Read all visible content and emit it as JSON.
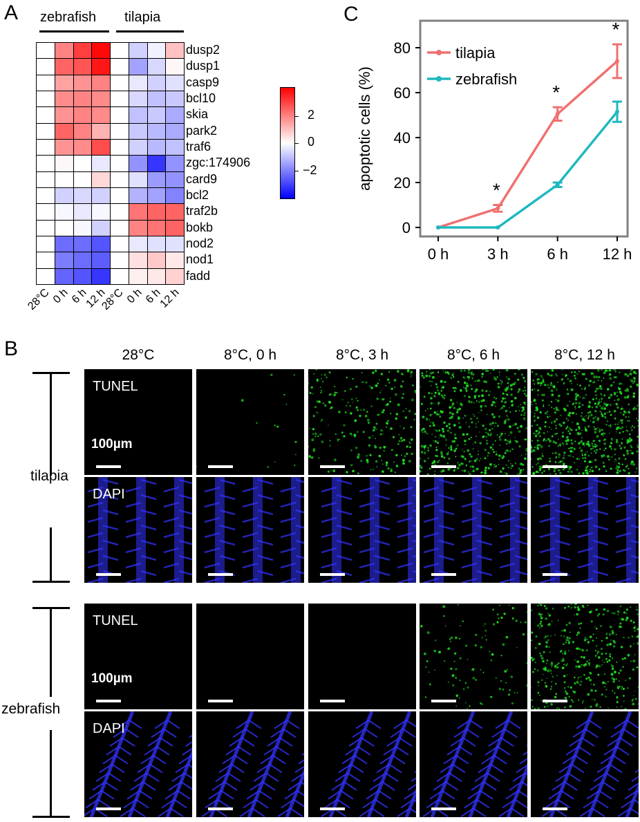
{
  "panels": {
    "a": "A",
    "b": "B",
    "c": "C"
  },
  "heatmap": {
    "groups": [
      "zebrafish",
      "tilapia"
    ],
    "genes": [
      "dusp2",
      "dusp1",
      "casp9",
      "bcl10",
      "skia",
      "park2",
      "traf6",
      "zgc:174906",
      "card9",
      "bcl2",
      "traf2b",
      "bokb",
      "nod2",
      "nod1",
      "fadd"
    ],
    "columns": [
      "28°C",
      "0 h",
      "6 h",
      "12 h",
      "28°C",
      "0 h",
      "6 h",
      "12 h"
    ],
    "values": [
      [
        0,
        1.6,
        2.5,
        3.2,
        0,
        -0.6,
        -0.2,
        0.8
      ],
      [
        0,
        2.0,
        2.2,
        3.0,
        0,
        -1.2,
        -0.5,
        0.1
      ],
      [
        0,
        1.2,
        1.4,
        1.6,
        0,
        -0.3,
        -0.6,
        -0.4
      ],
      [
        0,
        1.5,
        1.6,
        1.5,
        0,
        -0.5,
        -0.8,
        -0.7
      ],
      [
        0,
        1.4,
        1.6,
        1.5,
        0,
        -0.8,
        -0.7,
        -1.1
      ],
      [
        0,
        2.0,
        1.6,
        1.0,
        0,
        -0.7,
        -0.9,
        -1.1
      ],
      [
        0,
        1.4,
        1.5,
        2.3,
        0,
        -0.6,
        -0.9,
        -0.8
      ],
      [
        0,
        0.1,
        0.0,
        -0.3,
        0,
        -1.4,
        -2.6,
        -1.4
      ],
      [
        0,
        0.0,
        0.0,
        0.5,
        0,
        -0.4,
        -1.3,
        -1.4
      ],
      [
        0,
        -0.6,
        -0.5,
        -0.6,
        0,
        -1.0,
        -1.2,
        -1.6
      ],
      [
        0,
        -0.1,
        -0.3,
        -0.1,
        0,
        1.8,
        2.0,
        2.0
      ],
      [
        0,
        0.0,
        -0.1,
        -0.6,
        0,
        1.6,
        1.8,
        2.0
      ],
      [
        0,
        -1.9,
        -1.9,
        -2.2,
        0,
        -0.3,
        -0.4,
        -0.4
      ],
      [
        0,
        -1.7,
        -1.9,
        -2.1,
        0,
        0.4,
        0.7,
        0.3
      ],
      [
        0,
        -2.0,
        -2.2,
        -2.6,
        0,
        0.2,
        0.3,
        0.6
      ]
    ],
    "colorbar_ticks": [
      "2",
      "0",
      "−2"
    ],
    "color_scale": {
      "min": -3.3,
      "max": 3.3,
      "low": "#0000ff",
      "mid": "#ffffff",
      "high": "#ff0000"
    }
  },
  "chart_data": {
    "type": "line",
    "xlabel": "",
    "ylabel": "apoptotic cells (%)",
    "categories": [
      "0 h",
      "3 h",
      "6 h",
      "12 h"
    ],
    "ylim": [
      -4,
      92
    ],
    "yticks": [
      0,
      20,
      40,
      60,
      80
    ],
    "legend_position": "top-left",
    "series": [
      {
        "name": "tilapia",
        "color": "#f07070",
        "values": [
          0,
          8.5,
          50.5,
          74
        ],
        "errors": [
          0,
          1.5,
          3,
          7.5
        ]
      },
      {
        "name": "zebrafish",
        "color": "#1fb8c0",
        "values": [
          0,
          0,
          19,
          51.5
        ],
        "errors": [
          0,
          0,
          1,
          4.5
        ]
      }
    ],
    "annotations": [
      "*",
      "*",
      "*"
    ],
    "significant_categories": [
      "3 h",
      "6 h",
      "12 h"
    ]
  },
  "micrographs": {
    "conditions": [
      "28°C",
      "8°C, 0 h",
      "8°C, 3 h",
      "8°C, 6 h",
      "8°C, 12 h"
    ],
    "species": [
      "tilapia",
      "zebrafish"
    ],
    "stains": [
      "TUNEL",
      "DAPI"
    ],
    "scale_text": "100µm",
    "tunel_density": {
      "tilapia": [
        0,
        0.02,
        0.35,
        0.75,
        0.95
      ],
      "zebrafish": [
        0,
        0,
        0,
        0.15,
        0.55
      ]
    },
    "tunel_color": "#22dd22",
    "dapi_color": "#3333ff"
  }
}
